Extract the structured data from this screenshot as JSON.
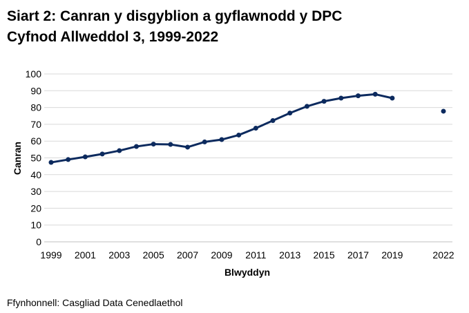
{
  "chart_data": {
    "type": "line",
    "title": [
      "Siart 2: Canran y disgyblion a gyflawnodd y DPC",
      "Cyfnod Allweddol 3, 1999-2022"
    ],
    "x_label": "Blwyddyn",
    "y_label": "Canran",
    "source": "Ffynhonnell: Casgliad Data Cenedlaethol",
    "x": [
      1999,
      2000,
      2001,
      2002,
      2003,
      2004,
      2005,
      2006,
      2007,
      2008,
      2009,
      2010,
      2011,
      2012,
      2013,
      2014,
      2015,
      2016,
      2017,
      2018,
      2019,
      2020,
      2021,
      2022
    ],
    "series": [
      {
        "color": "#0c2a5e",
        "values": [
          47.3,
          49.0,
          50.6,
          52.3,
          54.3,
          56.8,
          58.2,
          58.0,
          56.4,
          59.5,
          60.9,
          63.6,
          67.7,
          72.2,
          76.7,
          80.7,
          83.7,
          85.6,
          87.0,
          87.9,
          85.6,
          null,
          null,
          77.8
        ]
      }
    ],
    "xlim": [
      1999,
      2022
    ],
    "ylim": [
      0,
      100
    ],
    "xticks": [
      1999,
      2001,
      2003,
      2005,
      2007,
      2009,
      2011,
      2013,
      2015,
      2017,
      2019,
      2022
    ],
    "yticks": [
      0,
      10,
      20,
      30,
      40,
      50,
      60,
      70,
      80,
      90,
      100
    ],
    "grid": true
  }
}
